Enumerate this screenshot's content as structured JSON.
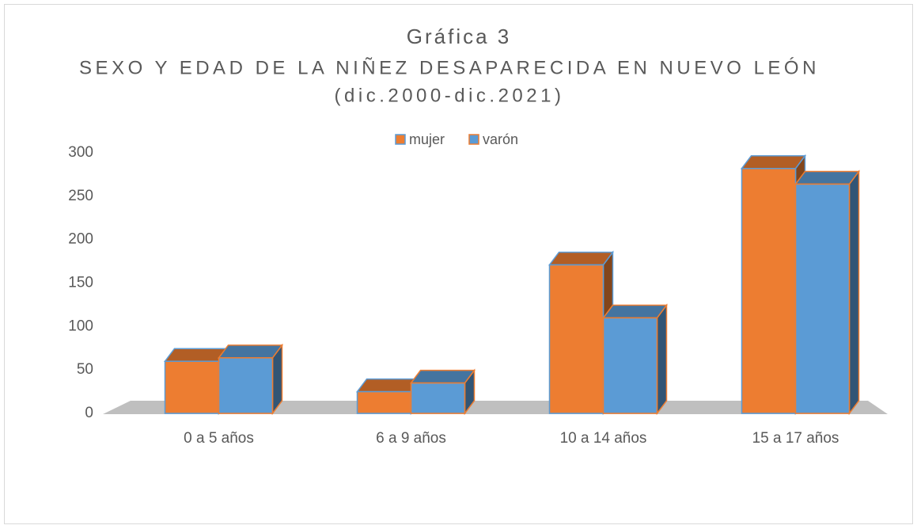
{
  "chart_data": {
    "type": "bar3d",
    "title": "Gráfica 3",
    "subtitle": "SEXO Y EDAD DE LA NIÑEZ DESAPARECIDA EN NUEVO LEÓN",
    "subtitle2": "(dic.2000-dic.2021)",
    "categories": [
      "0 a 5 años",
      "6 a 9 años",
      "10 a 14 años",
      "15 a 17 años"
    ],
    "series": [
      {
        "name": "mujer",
        "color": "#ED7D31",
        "edge": "#5B9BD5",
        "values": [
          60,
          25,
          171,
          282
        ]
      },
      {
        "name": "varón",
        "color": "#5B9BD5",
        "edge": "#ED7D31",
        "values": [
          64,
          35,
          110,
          264
        ]
      }
    ],
    "ylim": [
      0,
      300
    ],
    "yticks": [
      0,
      50,
      100,
      150,
      200,
      250,
      300
    ],
    "grid": false,
    "legend": "top"
  }
}
